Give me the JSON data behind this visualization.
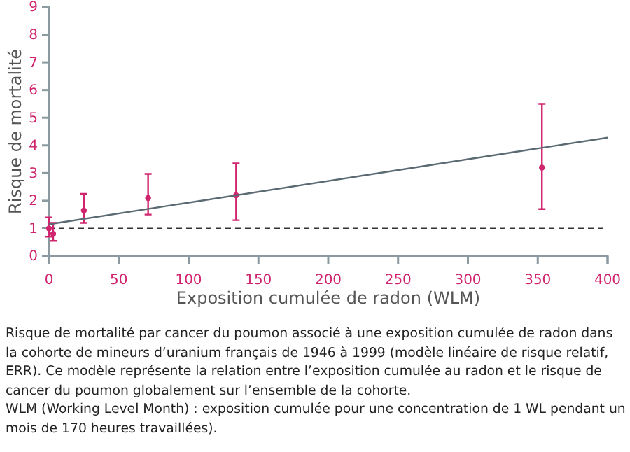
{
  "chart_data": {
    "type": "scatter",
    "xlabel": "Exposition cumulée de radon (WLM)",
    "ylabel": "Risque de mortalité",
    "xlim": [
      0,
      400
    ],
    "ylim": [
      0,
      9
    ],
    "xticks": [
      0,
      50,
      100,
      150,
      200,
      250,
      300,
      350,
      400
    ],
    "yticks": [
      0,
      1,
      2,
      3,
      4,
      5,
      6,
      7,
      8,
      9
    ],
    "grid": false,
    "marker": "circle",
    "series": [
      {
        "color": "#d0246e",
        "x": [
          0,
          3,
          25,
          71,
          134,
          353
        ],
        "values": [
          1.0,
          0.8,
          1.65,
          2.1,
          2.2,
          3.2
        ],
        "errors": [
          [
            0.7,
            1.4
          ],
          [
            0.55,
            1.2
          ],
          [
            1.2,
            2.25
          ],
          [
            1.5,
            2.97
          ],
          [
            1.3,
            3.35
          ],
          [
            1.7,
            5.5
          ]
        ]
      },
      {
        "type": "line",
        "color": "#5a6a72",
        "x": [
          0,
          400
        ],
        "values": [
          1.15,
          4.28
        ],
        "marker": "none"
      }
    ],
    "ref_lines": [
      {
        "axis": "y",
        "value": 1,
        "color": "#333333",
        "line_style": "dashed"
      }
    ],
    "annotations": [
      "Risque de mortalité par cancer du poumon associé à une exposition cumulée de radon dans la cohorte de mineurs d’uranium français de 1946 à 1999 (modèle linéaire de risque relatif, ERR). Ce modèle représente la relation entre l’exposition cumulée au radon et le risque de cancer du poumon globalement sur l’ensemble de la cohorte.",
      "WLM (Working Level Month) : exposition cumulée pour une concentration de 1 WL pendant un mois de 170 heures travaillées)."
    ]
  }
}
